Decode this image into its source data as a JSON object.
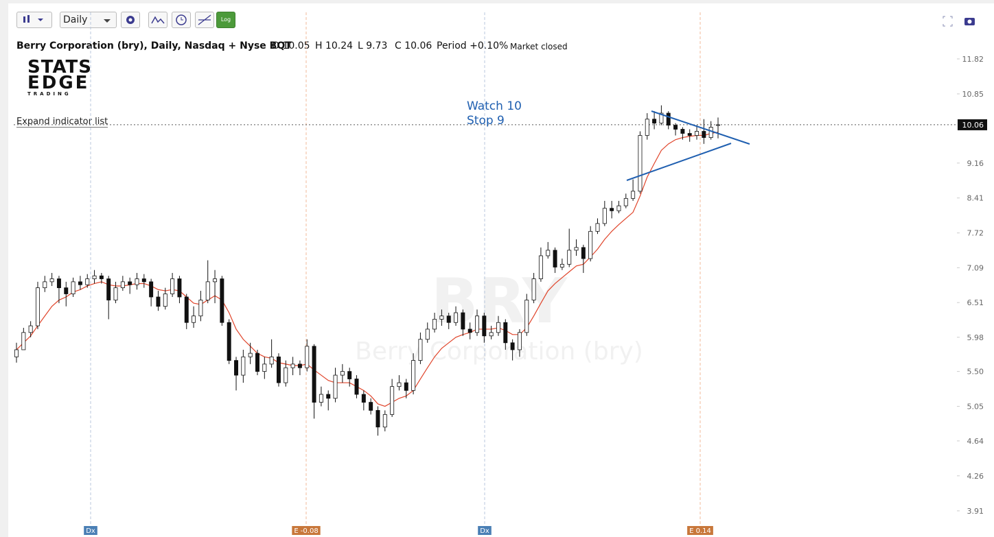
{
  "header": {
    "title": "Berry Corporation (bry), Daily, Nasdaq + Nyse BQT",
    "o_label": "O",
    "h_label": "H",
    "l_label": "L",
    "c_label": "C",
    "period_label": "Period",
    "period": "+0.10%",
    "status": "Market closed",
    "interval": "Daily",
    "log_button": "Log",
    "expand": "Expand indicator list"
  },
  "logo": {
    "line1": "STATS",
    "line2": "EDGE",
    "line3": "TRADING"
  },
  "chart_data": {
    "type": "candlestick",
    "watermark": "BRY",
    "watermark_sub": "Berry Corporation (bry)",
    "annotations": [
      "Watch 10",
      "Stop 9"
    ],
    "events": [
      "Dx",
      "E -0.08",
      "Dx",
      "E 0.14"
    ],
    "log_scale": true,
    "ylim": [
      3.78,
      12.66
    ],
    "yticks": [
      3.91,
      4.26,
      4.64,
      5.05,
      {
        "value": 5.5,
        "label": "5.50"
      },
      5.98,
      6.51,
      7.09,
      7.72,
      8.41,
      9.16,
      10.85,
      11.82
    ],
    "up_color": "#ffffff",
    "down_color": "#111111",
    "open": [
      5.7,
      5.8,
      6.05,
      6.15,
      6.75,
      6.85,
      6.9,
      6.75,
      6.65,
      6.85,
      6.8,
      6.9,
      6.95,
      6.9,
      6.55,
      6.75,
      6.85,
      6.8,
      6.9,
      6.85,
      6.6,
      6.45,
      6.65,
      6.9,
      6.6,
      6.2,
      6.3,
      6.55,
      6.85,
      6.9,
      6.2,
      5.65,
      5.45,
      5.7,
      5.75,
      5.5,
      5.6,
      5.7,
      5.35,
      5.55,
      5.6,
      5.55,
      5.85,
      5.1,
      5.2,
      5.15,
      5.45,
      5.5,
      5.4,
      5.2,
      5.1,
      5.0,
      4.8,
      4.95,
      5.3,
      5.35,
      5.25,
      5.65,
      5.95,
      6.1,
      6.25,
      6.3,
      6.2,
      6.35,
      6.1,
      6.05,
      6.3,
      6.0,
      6.05,
      6.2,
      5.9,
      5.8,
      6.05,
      6.55,
      6.9,
      7.3,
      7.4,
      7.1,
      7.15,
      7.4,
      7.45,
      7.25,
      7.75,
      7.9,
      8.2,
      8.15,
      8.25,
      8.4,
      8.55,
      9.8,
      10.2,
      10.1,
      10.35,
      10.05,
      9.95,
      9.85,
      9.8,
      9.9,
      9.75,
      10.05
    ],
    "high": [
      5.9,
      6.12,
      6.22,
      6.85,
      6.95,
      7.0,
      6.95,
      6.85,
      6.92,
      6.95,
      6.98,
      7.05,
      7.0,
      6.95,
      6.85,
      6.95,
      6.92,
      7.0,
      6.98,
      6.9,
      6.7,
      6.75,
      7.0,
      6.95,
      6.65,
      6.45,
      6.7,
      7.22,
      7.05,
      6.95,
      6.25,
      5.7,
      5.8,
      5.9,
      5.8,
      5.7,
      5.95,
      5.75,
      5.65,
      5.7,
      5.65,
      5.95,
      5.88,
      5.3,
      5.25,
      5.55,
      5.6,
      5.55,
      5.45,
      5.25,
      5.15,
      5.05,
      5.0,
      5.4,
      5.45,
      5.4,
      5.75,
      6.05,
      6.2,
      6.35,
      6.4,
      6.35,
      6.45,
      6.4,
      6.2,
      6.4,
      6.35,
      6.15,
      6.3,
      6.25,
      5.95,
      6.1,
      6.65,
      7.0,
      7.45,
      7.55,
      7.45,
      7.25,
      7.8,
      7.6,
      7.5,
      7.85,
      8.0,
      8.35,
      8.35,
      8.35,
      8.5,
      8.8,
      9.9,
      10.35,
      10.4,
      10.55,
      10.4,
      10.1,
      10.0,
      9.95,
      10.05,
      10.2,
      10.15,
      10.24
    ],
    "low": [
      5.62,
      5.8,
      5.98,
      6.1,
      6.68,
      6.78,
      6.5,
      6.45,
      6.6,
      6.72,
      6.75,
      6.82,
      6.82,
      6.25,
      6.5,
      6.7,
      6.65,
      6.72,
      6.75,
      6.45,
      6.38,
      6.4,
      6.6,
      6.5,
      6.1,
      6.12,
      6.22,
      6.5,
      6.5,
      6.15,
      5.6,
      5.25,
      5.35,
      5.6,
      5.45,
      5.4,
      5.55,
      5.3,
      5.3,
      5.45,
      5.45,
      5.5,
      4.9,
      5.05,
      5.0,
      5.1,
      5.35,
      5.3,
      5.15,
      5.0,
      4.95,
      4.7,
      4.75,
      4.92,
      5.25,
      5.15,
      5.2,
      5.6,
      5.9,
      6.05,
      6.15,
      6.1,
      6.15,
      6.0,
      5.95,
      6.0,
      5.9,
      5.95,
      6.0,
      5.8,
      5.65,
      5.7,
      6.0,
      6.5,
      6.85,
      7.25,
      7.0,
      7.05,
      7.1,
      7.3,
      7.0,
      7.2,
      7.7,
      7.85,
      8.0,
      8.1,
      8.2,
      8.35,
      8.5,
      9.7,
      9.95,
      10.05,
      9.95,
      9.8,
      9.7,
      9.65,
      9.7,
      9.6,
      9.7,
      9.73
    ],
    "close": [
      5.8,
      6.05,
      6.15,
      6.75,
      6.85,
      6.9,
      6.75,
      6.65,
      6.85,
      6.8,
      6.9,
      6.95,
      6.9,
      6.55,
      6.75,
      6.85,
      6.8,
      6.9,
      6.85,
      6.6,
      6.45,
      6.65,
      6.9,
      6.6,
      6.2,
      6.3,
      6.55,
      6.85,
      6.9,
      6.2,
      5.65,
      5.45,
      5.7,
      5.75,
      5.5,
      5.6,
      5.7,
      5.35,
      5.55,
      5.6,
      5.55,
      5.85,
      5.1,
      5.2,
      5.15,
      5.45,
      5.5,
      5.4,
      5.2,
      5.1,
      5.0,
      4.8,
      4.95,
      5.3,
      5.35,
      5.25,
      5.65,
      5.95,
      6.1,
      6.25,
      6.3,
      6.2,
      6.35,
      6.1,
      6.05,
      6.3,
      6.0,
      6.05,
      6.2,
      5.9,
      5.8,
      6.05,
      6.55,
      6.9,
      7.3,
      7.4,
      7.1,
      7.15,
      7.4,
      7.45,
      7.25,
      7.75,
      7.9,
      8.2,
      8.15,
      8.25,
      8.4,
      8.55,
      9.8,
      10.2,
      10.1,
      10.35,
      10.05,
      9.95,
      9.85,
      9.8,
      9.9,
      9.75,
      10.0,
      10.06
    ],
    "line": {
      "color": "#e0442a",
      "values": [
        5.8,
        5.9,
        6.0,
        6.15,
        6.3,
        6.45,
        6.55,
        6.6,
        6.68,
        6.72,
        6.78,
        6.82,
        6.85,
        6.8,
        6.78,
        6.78,
        6.8,
        6.82,
        6.82,
        6.78,
        6.72,
        6.7,
        6.72,
        6.7,
        6.6,
        6.5,
        6.48,
        6.55,
        6.62,
        6.55,
        6.35,
        6.1,
        5.95,
        5.85,
        5.75,
        5.7,
        5.68,
        5.62,
        5.6,
        5.58,
        5.58,
        5.6,
        5.52,
        5.45,
        5.38,
        5.35,
        5.35,
        5.35,
        5.3,
        5.25,
        5.18,
        5.08,
        5.05,
        5.1,
        5.15,
        5.18,
        5.25,
        5.4,
        5.55,
        5.7,
        5.82,
        5.9,
        5.98,
        6.02,
        6.05,
        6.1,
        6.1,
        6.1,
        6.12,
        6.08,
        6.02,
        6.02,
        6.12,
        6.3,
        6.5,
        6.7,
        6.82,
        6.92,
        7.02,
        7.12,
        7.15,
        7.28,
        7.42,
        7.6,
        7.75,
        7.88,
        8.0,
        8.12,
        8.45,
        8.85,
        9.15,
        9.45,
        9.6,
        9.7,
        9.75,
        9.78,
        9.8,
        9.8,
        9.85,
        9.88
      ]
    }
  }
}
